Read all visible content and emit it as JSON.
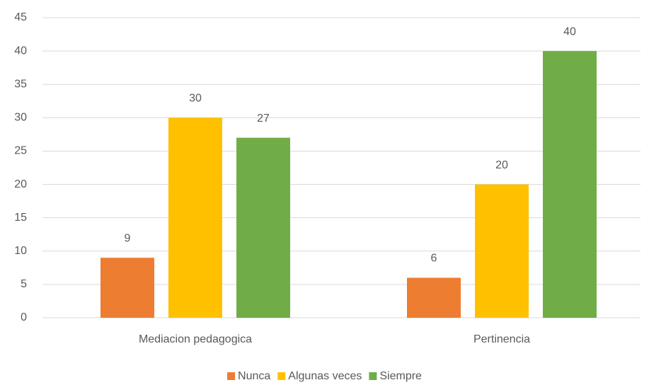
{
  "chart_data": {
    "type": "bar",
    "categories": [
      "Mediacion pedagogica",
      "Pertinencia"
    ],
    "series": [
      {
        "name": "Nunca",
        "color": "#ed7d31",
        "values": [
          9,
          6
        ]
      },
      {
        "name": "Algunas veces",
        "color": "#ffc000",
        "values": [
          30,
          20
        ]
      },
      {
        "name": "Siempre",
        "color": "#70ad47",
        "values": [
          27,
          40
        ]
      }
    ],
    "ylim": [
      0,
      45
    ],
    "yticks": [
      0,
      5,
      10,
      15,
      20,
      25,
      30,
      35,
      40,
      45
    ],
    "grid": true,
    "legend": "bottom",
    "data_labels": true
  }
}
